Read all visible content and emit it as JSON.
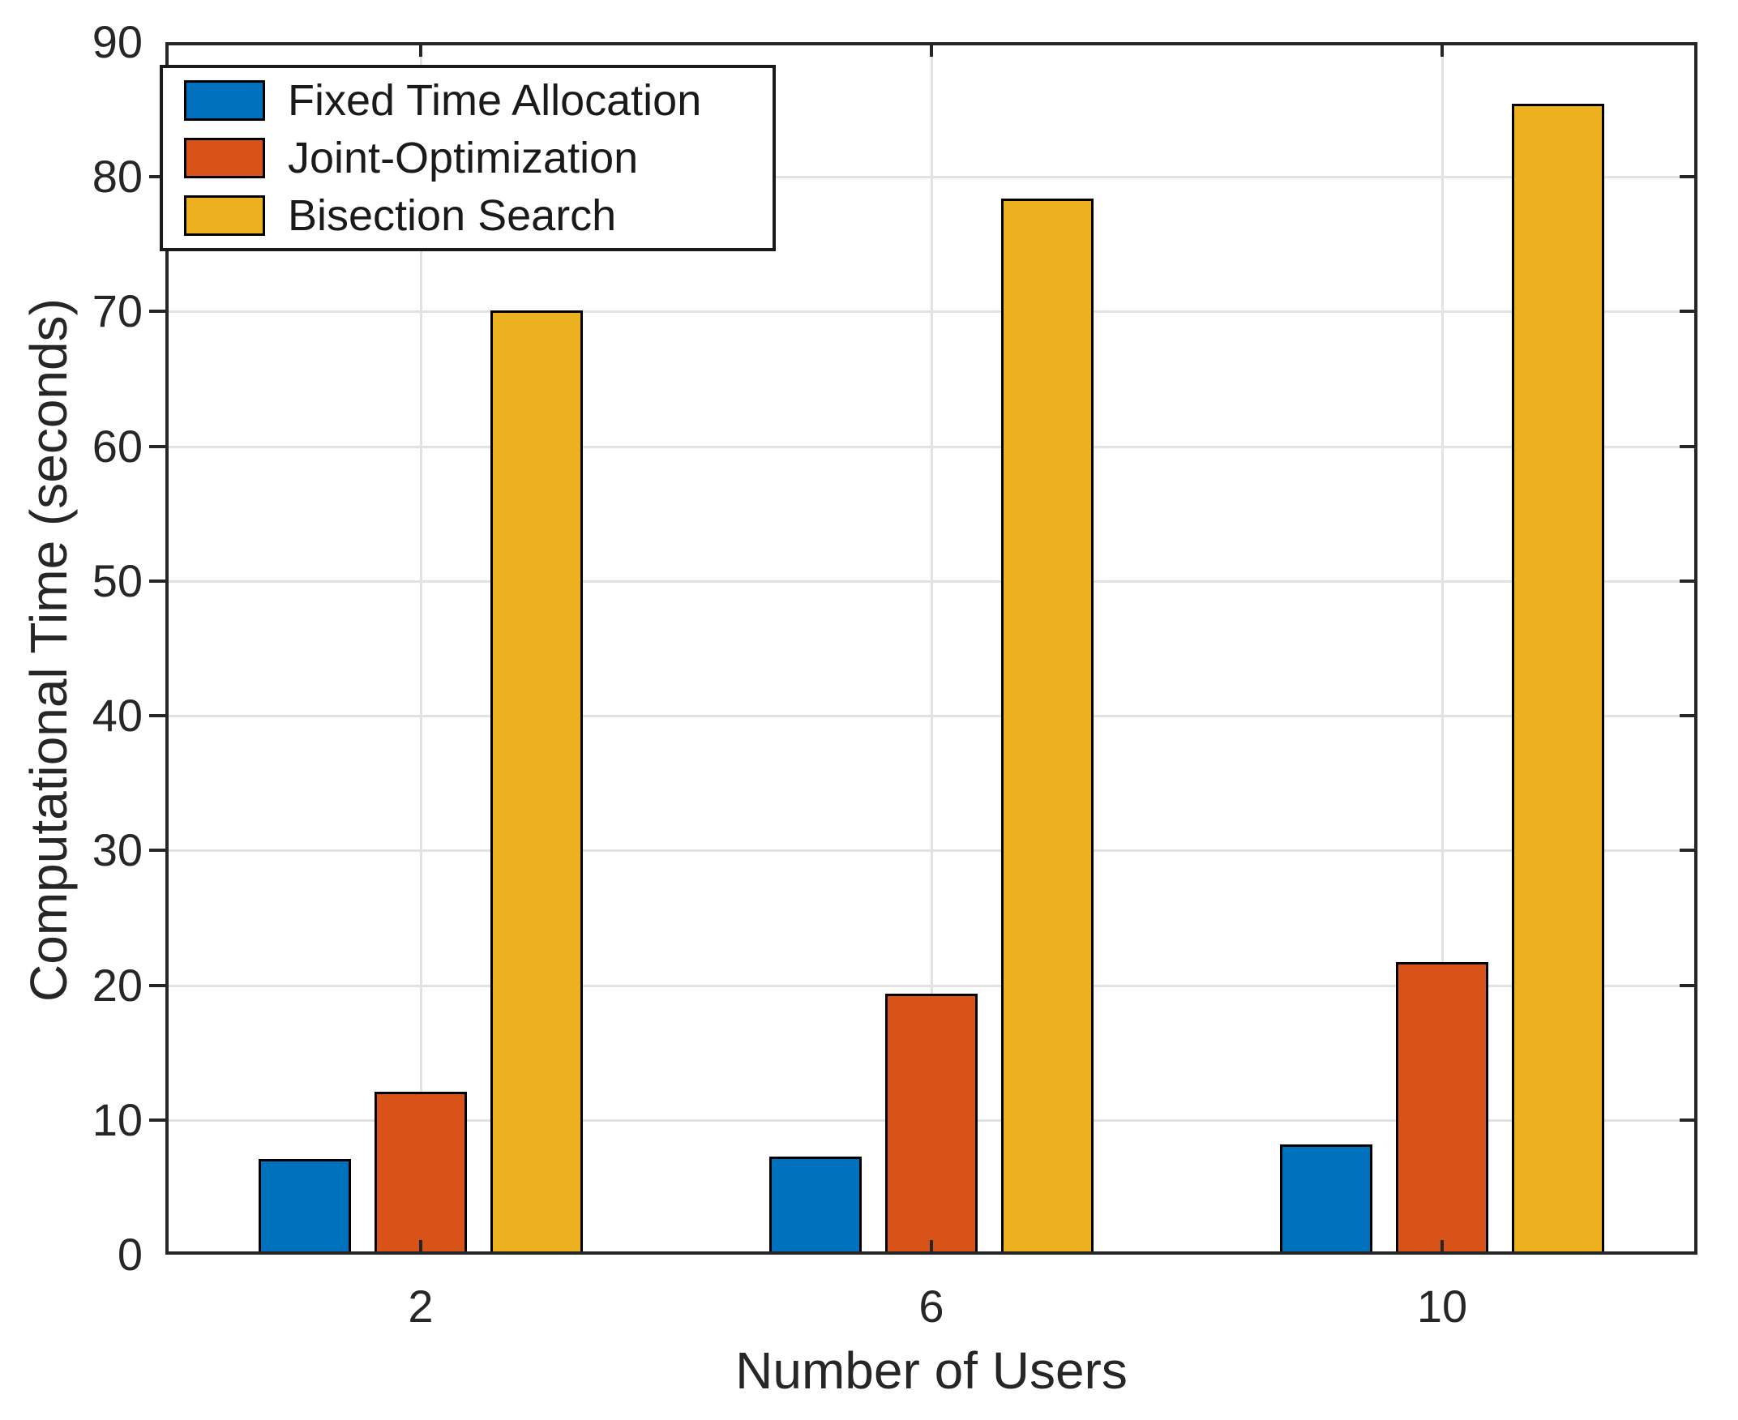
{
  "chart_data": {
    "type": "bar",
    "title": "",
    "xlabel": "Number of Users",
    "ylabel": "Computational Time (seconds)",
    "categories": [
      "2",
      "6",
      "10"
    ],
    "series": [
      {
        "name": "Fixed Time Allocation",
        "color": "#0072BD",
        "values": [
          7.1,
          7.3,
          8.2
        ]
      },
      {
        "name": "Joint-Optimization",
        "color": "#D95319",
        "values": [
          12.1,
          19.4,
          21.7
        ]
      },
      {
        "name": "Bisection Search",
        "color": "#EDB120",
        "values": [
          70.1,
          78.4,
          85.4
        ]
      }
    ],
    "ylim": [
      0,
      90
    ],
    "ytick_labels": [
      "0",
      "10",
      "20",
      "30",
      "40",
      "50",
      "60",
      "70",
      "80",
      "90"
    ],
    "grid": true,
    "legend_position": "top-left",
    "axis_color": "#262626",
    "grid_color": "#e2e2e2",
    "bar_edge_color": "#000000"
  }
}
